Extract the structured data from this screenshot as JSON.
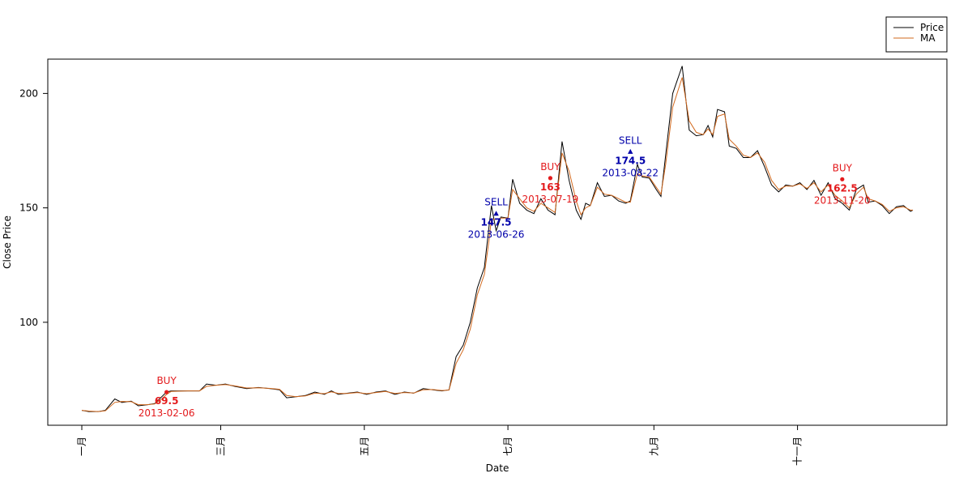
{
  "chart_data": {
    "type": "line",
    "xlabel": "Date",
    "ylabel": "Close Price",
    "xlim": [
      "2013-01-01",
      "2013-12-20"
    ],
    "ylim": [
      55,
      215
    ],
    "x_ticks": [
      {
        "date": "2013-01-01",
        "label": "一月"
      },
      {
        "date": "2013-03-01",
        "label": "三月"
      },
      {
        "date": "2013-05-01",
        "label": "五月"
      },
      {
        "date": "2013-07-01",
        "label": "七月"
      },
      {
        "date": "2013-09-01",
        "label": "九月"
      },
      {
        "date": "2013-11-01",
        "label": "十一月"
      }
    ],
    "y_ticks": [
      100,
      150,
      200
    ],
    "legend": {
      "placement": "top-right, outside plot",
      "entries": [
        {
          "name": "Price",
          "color": "#000000"
        },
        {
          "name": "MA",
          "color": "#d2691e"
        }
      ]
    },
    "series": [
      {
        "name": "Price",
        "color": "#000000",
        "points": [
          [
            "2013-01-01",
            61.5
          ],
          [
            "2013-01-04",
            61
          ],
          [
            "2013-01-08",
            61
          ],
          [
            "2013-01-11",
            61.5
          ],
          [
            "2013-01-15",
            66.5
          ],
          [
            "2013-01-18",
            65
          ],
          [
            "2013-01-22",
            65.5
          ],
          [
            "2013-01-25",
            63.5
          ],
          [
            "2013-01-29",
            64
          ],
          [
            "2013-02-01",
            64.5
          ],
          [
            "2013-02-04",
            67.5
          ],
          [
            "2013-02-06",
            69.5
          ],
          [
            "2013-02-08",
            70
          ],
          [
            "2013-02-15",
            70
          ],
          [
            "2013-02-20",
            70
          ],
          [
            "2013-02-23",
            73
          ],
          [
            "2013-02-27",
            72.5
          ],
          [
            "2013-03-03",
            73
          ],
          [
            "2013-03-07",
            72
          ],
          [
            "2013-03-12",
            71
          ],
          [
            "2013-03-17",
            71.5
          ],
          [
            "2013-03-22",
            71
          ],
          [
            "2013-03-26",
            70.5
          ],
          [
            "2013-03-29",
            67
          ],
          [
            "2013-04-02",
            67.5
          ],
          [
            "2013-04-06",
            68
          ],
          [
            "2013-04-10",
            69.5
          ],
          [
            "2013-04-14",
            68.5
          ],
          [
            "2013-04-17",
            70
          ],
          [
            "2013-04-20",
            68.5
          ],
          [
            "2013-04-24",
            69
          ],
          [
            "2013-04-28",
            69.5
          ],
          [
            "2013-05-02",
            68.5
          ],
          [
            "2013-05-06",
            69.5
          ],
          [
            "2013-05-10",
            70
          ],
          [
            "2013-05-14",
            68.5
          ],
          [
            "2013-05-18",
            69.5
          ],
          [
            "2013-05-22",
            69
          ],
          [
            "2013-05-26",
            71
          ],
          [
            "2013-05-30",
            70.5
          ],
          [
            "2013-06-03",
            70
          ],
          [
            "2013-06-06",
            70.5
          ],
          [
            "2013-06-09",
            85
          ],
          [
            "2013-06-12",
            90
          ],
          [
            "2013-06-15",
            100
          ],
          [
            "2013-06-18",
            115
          ],
          [
            "2013-06-21",
            124
          ],
          [
            "2013-06-23",
            142
          ],
          [
            "2013-06-24",
            151
          ],
          [
            "2013-06-26",
            140
          ],
          [
            "2013-06-28",
            146
          ],
          [
            "2013-07-01",
            145.5
          ],
          [
            "2013-07-03",
            162.5
          ],
          [
            "2013-07-06",
            152
          ],
          [
            "2013-07-09",
            149
          ],
          [
            "2013-07-12",
            147.5
          ],
          [
            "2013-07-15",
            154
          ],
          [
            "2013-07-18",
            149
          ],
          [
            "2013-07-21",
            147
          ],
          [
            "2013-07-24",
            179
          ],
          [
            "2013-07-27",
            162
          ],
          [
            "2013-07-30",
            149
          ],
          [
            "2013-08-01",
            145
          ],
          [
            "2013-08-03",
            152
          ],
          [
            "2013-08-05",
            151
          ],
          [
            "2013-08-08",
            161
          ],
          [
            "2013-08-11",
            155
          ],
          [
            "2013-08-14",
            155.5
          ],
          [
            "2013-08-17",
            153
          ],
          [
            "2013-08-20",
            152
          ],
          [
            "2013-08-22",
            153
          ],
          [
            "2013-08-25",
            169
          ],
          [
            "2013-08-27",
            163.5
          ],
          [
            "2013-08-30",
            163
          ],
          [
            "2013-09-02",
            158
          ],
          [
            "2013-09-04",
            155
          ],
          [
            "2013-09-06",
            173
          ],
          [
            "2013-09-09",
            200
          ],
          [
            "2013-09-13",
            212
          ],
          [
            "2013-09-16",
            184
          ],
          [
            "2013-09-19",
            181.5
          ],
          [
            "2013-09-22",
            182
          ],
          [
            "2013-09-24",
            186
          ],
          [
            "2013-09-26",
            181
          ],
          [
            "2013-09-28",
            193
          ],
          [
            "2013-10-01",
            192
          ],
          [
            "2013-10-03",
            177
          ],
          [
            "2013-10-06",
            176
          ],
          [
            "2013-10-09",
            172
          ],
          [
            "2013-10-12",
            172
          ],
          [
            "2013-10-15",
            175
          ],
          [
            "2013-10-18",
            168
          ],
          [
            "2013-10-21",
            160
          ],
          [
            "2013-10-24",
            157
          ],
          [
            "2013-10-27",
            160
          ],
          [
            "2013-10-30",
            159.5
          ],
          [
            "2013-11-02",
            161
          ],
          [
            "2013-11-05",
            158
          ],
          [
            "2013-11-08",
            162
          ],
          [
            "2013-11-11",
            155.5
          ],
          [
            "2013-11-14",
            161
          ],
          [
            "2013-11-17",
            154
          ],
          [
            "2013-11-20",
            152
          ],
          [
            "2013-11-23",
            149
          ],
          [
            "2013-11-26",
            158
          ],
          [
            "2013-11-29",
            160
          ],
          [
            "2013-12-01",
            152.5
          ],
          [
            "2013-12-04",
            153
          ],
          [
            "2013-12-07",
            151
          ],
          [
            "2013-12-10",
            147.5
          ],
          [
            "2013-12-13",
            150.5
          ],
          [
            "2013-12-16",
            151
          ],
          [
            "2013-12-19",
            148.5
          ],
          [
            "2013-12-20",
            149
          ]
        ]
      },
      {
        "name": "MA",
        "color": "#d2691e",
        "points": [
          [
            "2013-01-01",
            61.5
          ],
          [
            "2013-01-04",
            61.2
          ],
          [
            "2013-01-08",
            61
          ],
          [
            "2013-01-11",
            61.3
          ],
          [
            "2013-01-15",
            65
          ],
          [
            "2013-01-18",
            65.4
          ],
          [
            "2013-01-22",
            65.3
          ],
          [
            "2013-01-25",
            64
          ],
          [
            "2013-01-29",
            64
          ],
          [
            "2013-02-01",
            64.3
          ],
          [
            "2013-02-04",
            66.5
          ],
          [
            "2013-02-06",
            68.5
          ],
          [
            "2013-02-08",
            69.8
          ],
          [
            "2013-02-15",
            70
          ],
          [
            "2013-02-20",
            70
          ],
          [
            "2013-02-23",
            72
          ],
          [
            "2013-02-27",
            72.5
          ],
          [
            "2013-03-03",
            72.8
          ],
          [
            "2013-03-07",
            72.2
          ],
          [
            "2013-03-12",
            71.3
          ],
          [
            "2013-03-17",
            71.4
          ],
          [
            "2013-03-22",
            71.1
          ],
          [
            "2013-03-26",
            70.7
          ],
          [
            "2013-03-29",
            68
          ],
          [
            "2013-04-02",
            67.5
          ],
          [
            "2013-04-06",
            67.8
          ],
          [
            "2013-04-10",
            69
          ],
          [
            "2013-04-14",
            68.8
          ],
          [
            "2013-04-17",
            69.6
          ],
          [
            "2013-04-20",
            68.9
          ],
          [
            "2013-04-24",
            68.9
          ],
          [
            "2013-04-28",
            69.3
          ],
          [
            "2013-05-02",
            68.8
          ],
          [
            "2013-05-06",
            69.3
          ],
          [
            "2013-05-10",
            69.8
          ],
          [
            "2013-05-14",
            68.9
          ],
          [
            "2013-05-18",
            69.3
          ],
          [
            "2013-05-22",
            69.1
          ],
          [
            "2013-05-26",
            70.5
          ],
          [
            "2013-05-30",
            70.6
          ],
          [
            "2013-06-03",
            70.2
          ],
          [
            "2013-06-06",
            70.4
          ],
          [
            "2013-06-09",
            82
          ],
          [
            "2013-06-12",
            88
          ],
          [
            "2013-06-15",
            97
          ],
          [
            "2013-06-18",
            112
          ],
          [
            "2013-06-21",
            121
          ],
          [
            "2013-06-23",
            136
          ],
          [
            "2013-06-24",
            145
          ],
          [
            "2013-06-26",
            145
          ],
          [
            "2013-06-28",
            145.5
          ],
          [
            "2013-07-01",
            145.5
          ],
          [
            "2013-07-03",
            158
          ],
          [
            "2013-07-06",
            154
          ],
          [
            "2013-07-09",
            150
          ],
          [
            "2013-07-12",
            148.5
          ],
          [
            "2013-07-15",
            152
          ],
          [
            "2013-07-18",
            150
          ],
          [
            "2013-07-21",
            148
          ],
          [
            "2013-07-24",
            174
          ],
          [
            "2013-07-27",
            166
          ],
          [
            "2013-07-30",
            153
          ],
          [
            "2013-08-01",
            147
          ],
          [
            "2013-08-03",
            150
          ],
          [
            "2013-08-05",
            151
          ],
          [
            "2013-08-08",
            159
          ],
          [
            "2013-08-11",
            156
          ],
          [
            "2013-08-14",
            155.5
          ],
          [
            "2013-08-17",
            154
          ],
          [
            "2013-08-20",
            152.5
          ],
          [
            "2013-08-22",
            152.5
          ],
          [
            "2013-08-25",
            165
          ],
          [
            "2013-08-27",
            164
          ],
          [
            "2013-08-30",
            163.5
          ],
          [
            "2013-09-02",
            159
          ],
          [
            "2013-09-04",
            156
          ],
          [
            "2013-09-06",
            169
          ],
          [
            "2013-09-09",
            194
          ],
          [
            "2013-09-13",
            207
          ],
          [
            "2013-09-16",
            188
          ],
          [
            "2013-09-19",
            183
          ],
          [
            "2013-09-22",
            182
          ],
          [
            "2013-09-24",
            184.5
          ],
          [
            "2013-09-26",
            182
          ],
          [
            "2013-09-28",
            190
          ],
          [
            "2013-10-01",
            191
          ],
          [
            "2013-10-03",
            180
          ],
          [
            "2013-10-06",
            177
          ],
          [
            "2013-10-09",
            173
          ],
          [
            "2013-10-12",
            172
          ],
          [
            "2013-10-15",
            174
          ],
          [
            "2013-10-18",
            170
          ],
          [
            "2013-10-21",
            162
          ],
          [
            "2013-10-24",
            158
          ],
          [
            "2013-10-27",
            159.5
          ],
          [
            "2013-10-30",
            159.5
          ],
          [
            "2013-11-02",
            160.5
          ],
          [
            "2013-11-05",
            158.5
          ],
          [
            "2013-11-08",
            161
          ],
          [
            "2013-11-11",
            157
          ],
          [
            "2013-11-14",
            160
          ],
          [
            "2013-11-17",
            155.5
          ],
          [
            "2013-11-20",
            153
          ],
          [
            "2013-11-23",
            150
          ],
          [
            "2013-11-26",
            156
          ],
          [
            "2013-11-29",
            159
          ],
          [
            "2013-12-01",
            154
          ],
          [
            "2013-12-04",
            153
          ],
          [
            "2013-12-07",
            151.5
          ],
          [
            "2013-12-10",
            148.5
          ],
          [
            "2013-12-13",
            150
          ],
          [
            "2013-12-16",
            150.5
          ],
          [
            "2013-12-19",
            149
          ],
          [
            "2013-12-20",
            149
          ]
        ]
      }
    ],
    "signals": [
      {
        "type": "BUY",
        "date": "2013-02-06",
        "price": 69.5,
        "price_label": "69.5",
        "color": "#e31a1c"
      },
      {
        "type": "SELL",
        "date": "2013-06-26",
        "price": 147.5,
        "price_label": "147.5",
        "color": "#0000aa"
      },
      {
        "type": "BUY",
        "date": "2013-07-19",
        "price": 163,
        "price_label": "163",
        "color": "#e31a1c"
      },
      {
        "type": "SELL",
        "date": "2013-08-22",
        "price": 174.5,
        "price_label": "174.5",
        "color": "#0000aa"
      },
      {
        "type": "BUY",
        "date": "2013-11-20",
        "price": 162.5,
        "price_label": "162.5",
        "color": "#e31a1c"
      }
    ]
  }
}
